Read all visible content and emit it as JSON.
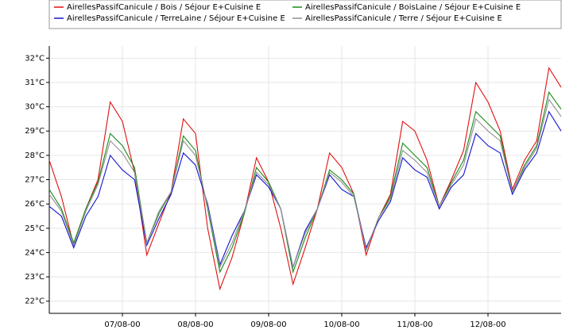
{
  "chart_data": {
    "type": "line",
    "x": [
      0,
      4,
      8,
      12,
      16,
      20,
      24,
      28,
      32,
      36,
      40,
      44,
      48,
      52,
      56,
      60,
      64,
      68,
      72,
      76,
      80,
      84,
      88,
      92,
      96,
      100,
      104,
      108,
      112,
      116,
      120,
      124,
      128,
      132,
      136,
      140,
      144,
      148,
      152,
      156,
      160,
      164,
      168
    ],
    "series": [
      {
        "name": "AirellesPassifCanicule / Bois / Séjour E+Cuisine E",
        "color": "#e01010",
        "values": [
          27.8,
          26.3,
          24.3,
          25.8,
          27.0,
          30.2,
          29.4,
          27.3,
          23.9,
          25.2,
          26.5,
          29.5,
          28.9,
          25.0,
          22.5,
          23.8,
          25.6,
          27.9,
          26.9,
          25.0,
          22.7,
          24.2,
          25.8,
          28.1,
          27.5,
          26.4,
          23.9,
          25.4,
          26.4,
          29.4,
          29.0,
          27.8,
          25.9,
          27.0,
          28.2,
          31.0,
          30.2,
          29.0,
          26.6,
          27.8,
          28.6,
          31.6,
          30.8
        ]
      },
      {
        "name": "AirellesPassifCanicule / BoisLaine / Séjour E+Cuisine E",
        "color": "#1a8a1a",
        "values": [
          26.6,
          25.8,
          24.4,
          25.8,
          26.9,
          28.9,
          28.4,
          27.5,
          24.4,
          25.6,
          26.5,
          28.8,
          28.2,
          25.8,
          23.2,
          24.2,
          25.6,
          27.5,
          26.9,
          25.8,
          23.2,
          24.6,
          25.8,
          27.4,
          27.0,
          26.4,
          24.1,
          25.4,
          26.3,
          28.5,
          28.0,
          27.5,
          25.9,
          26.9,
          27.8,
          29.8,
          29.3,
          28.8,
          26.5,
          27.6,
          28.4,
          30.6,
          29.9
        ]
      },
      {
        "name": "AirellesPassifCanicule / TerreLaine / Séjour E+Cuisine E",
        "color": "#1414d0",
        "values": [
          25.9,
          25.5,
          24.2,
          25.5,
          26.3,
          28.0,
          27.4,
          27.0,
          24.3,
          25.4,
          26.4,
          28.1,
          27.6,
          26.0,
          23.5,
          24.7,
          25.7,
          27.2,
          26.7,
          25.8,
          23.4,
          24.9,
          25.8,
          27.2,
          26.6,
          26.3,
          24.2,
          25.3,
          26.1,
          27.9,
          27.4,
          27.1,
          25.8,
          26.7,
          27.2,
          28.9,
          28.4,
          28.1,
          26.4,
          27.4,
          28.1,
          29.8,
          29.0
        ]
      },
      {
        "name": "AirellesPassifCanicule / Terre / Séjour E+Cuisine E",
        "color": "#909090",
        "values": [
          26.4,
          25.7,
          24.3,
          25.7,
          26.8,
          28.6,
          28.1,
          27.3,
          24.4,
          25.7,
          26.5,
          28.6,
          28.0,
          25.9,
          23.4,
          24.4,
          25.7,
          27.3,
          26.8,
          25.8,
          23.4,
          24.8,
          25.8,
          27.3,
          26.9,
          26.3,
          24.1,
          25.4,
          26.2,
          28.2,
          27.8,
          27.3,
          25.9,
          26.8,
          27.6,
          29.5,
          29.0,
          28.6,
          26.5,
          27.5,
          28.3,
          30.3,
          29.6
        ]
      }
    ],
    "xlim": [
      0,
      168
    ],
    "xticks": [
      {
        "value": 24,
        "label": "07/08-00"
      },
      {
        "value": 48,
        "label": "08/08-00"
      },
      {
        "value": 72,
        "label": "09/08-00"
      },
      {
        "value": 96,
        "label": "10/08-00"
      },
      {
        "value": 120,
        "label": "11/08-00"
      },
      {
        "value": 144,
        "label": "12/08-00"
      }
    ],
    "ylim": [
      21.5,
      32.5
    ],
    "yticks": [
      {
        "value": 22,
        "label": "22°C"
      },
      {
        "value": 23,
        "label": "23°C"
      },
      {
        "value": 24,
        "label": "24°C"
      },
      {
        "value": 25,
        "label": "25°C"
      },
      {
        "value": 26,
        "label": "26°C"
      },
      {
        "value": 27,
        "label": "27°C"
      },
      {
        "value": 28,
        "label": "28°C"
      },
      {
        "value": 29,
        "label": "29°C"
      },
      {
        "value": 30,
        "label": "30°C"
      },
      {
        "value": 31,
        "label": "31°C"
      },
      {
        "value": 32,
        "label": "32°C"
      }
    ],
    "grid": true
  }
}
